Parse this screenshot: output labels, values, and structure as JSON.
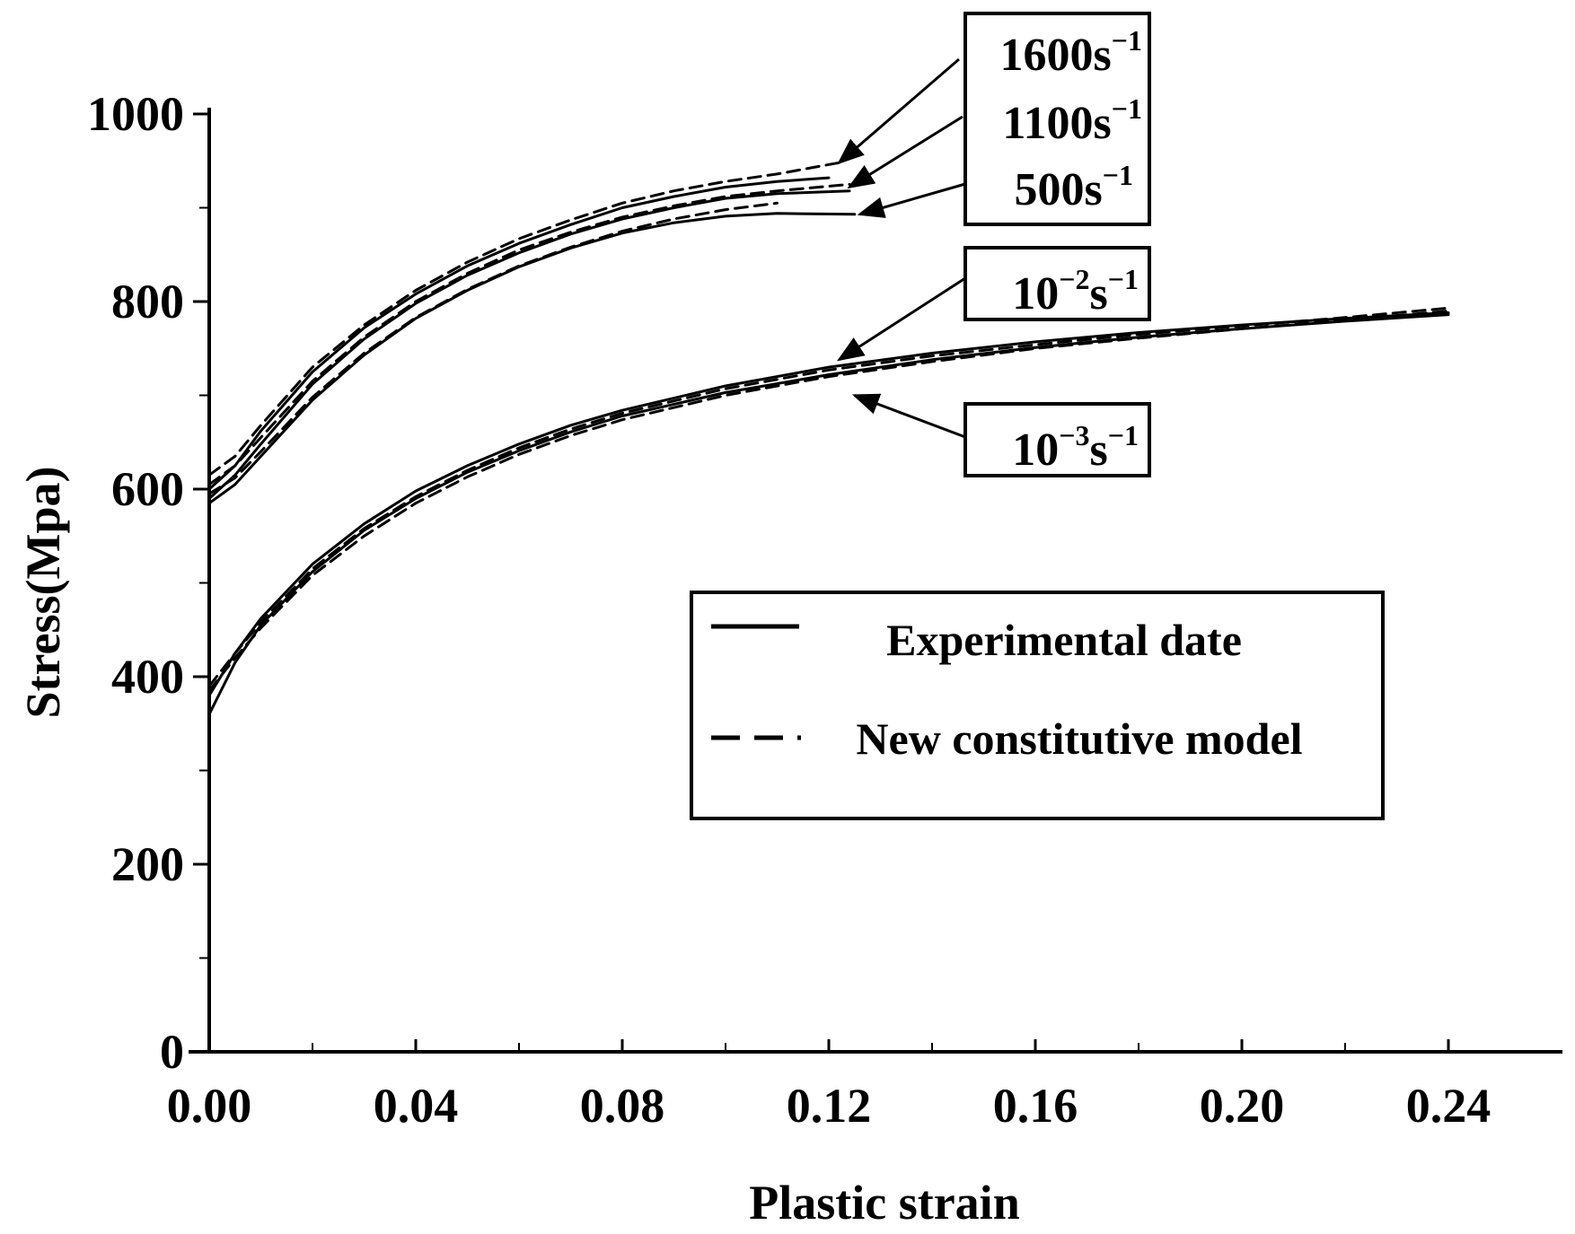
{
  "chart_data": {
    "type": "line",
    "title": "",
    "xlabel": "Plastic strain",
    "ylabel": "Stress(Mpa)",
    "xlim": [
      0,
      0.26
    ],
    "ylim": [
      0,
      1000
    ],
    "xticks": [
      0.0,
      0.04,
      0.08,
      0.12,
      0.16,
      0.2,
      0.24
    ],
    "xtick_labels": [
      "0.00",
      "0.04",
      "0.08",
      "0.12",
      "0.16",
      "0.20",
      "0.24"
    ],
    "yticks": [
      0,
      200,
      400,
      600,
      800,
      1000
    ],
    "ytick_labels": [
      "0",
      "200",
      "400",
      "600",
      "800",
      "1000"
    ],
    "legend": {
      "position": "center-right",
      "entries": [
        {
          "label": "Experimental date",
          "style": "solid"
        },
        {
          "label": "New constitutive model",
          "style": "dashed"
        }
      ]
    },
    "annotations": [
      {
        "rate": "1600",
        "exponent": "",
        "unit": "s",
        "unit_exp": "−1",
        "target": [
          0.122,
          948
        ]
      },
      {
        "rate": "1100",
        "exponent": "",
        "unit": "s",
        "unit_exp": "−1",
        "target": [
          0.124,
          922
        ]
      },
      {
        "rate": "500",
        "exponent": "",
        "unit": "s",
        "unit_exp": "−1",
        "target": [
          0.126,
          893
        ]
      },
      {
        "rate": "10",
        "exponent": "−2",
        "unit": "s",
        "unit_exp": "−1",
        "target": [
          0.122,
          738
        ]
      },
      {
        "rate": "10",
        "exponent": "−3",
        "unit": "s",
        "unit_exp": "−1",
        "target": [
          0.125,
          700
        ]
      }
    ],
    "series": [
      {
        "name": "1600s−1 experimental",
        "style": "solid",
        "x": [
          0,
          0.005,
          0.01,
          0.02,
          0.03,
          0.04,
          0.05,
          0.06,
          0.07,
          0.08,
          0.09,
          0.1,
          0.11,
          0.12
        ],
        "y": [
          600,
          625,
          662,
          725,
          772,
          808,
          838,
          862,
          882,
          900,
          912,
          922,
          928,
          932
        ]
      },
      {
        "name": "1600s−1 model",
        "style": "dashed",
        "x": [
          0,
          0.005,
          0.01,
          0.02,
          0.03,
          0.04,
          0.05,
          0.06,
          0.07,
          0.08,
          0.09,
          0.1,
          0.11,
          0.122
        ],
        "y": [
          615,
          635,
          668,
          730,
          775,
          812,
          842,
          867,
          887,
          905,
          918,
          928,
          936,
          948
        ]
      },
      {
        "name": "1100s−1 experimental",
        "style": "solid",
        "x": [
          0,
          0.005,
          0.01,
          0.02,
          0.03,
          0.04,
          0.05,
          0.06,
          0.07,
          0.08,
          0.09,
          0.1,
          0.11,
          0.124
        ],
        "y": [
          590,
          615,
          648,
          712,
          760,
          798,
          828,
          852,
          872,
          888,
          900,
          910,
          915,
          918
        ]
      },
      {
        "name": "1100s−1 model",
        "style": "dashed",
        "x": [
          0,
          0.005,
          0.01,
          0.02,
          0.03,
          0.04,
          0.05,
          0.06,
          0.07,
          0.08,
          0.09,
          0.1,
          0.11,
          0.124
        ],
        "y": [
          605,
          625,
          655,
          715,
          762,
          800,
          830,
          855,
          874,
          890,
          902,
          912,
          918,
          925
        ]
      },
      {
        "name": "500s−1 experimental",
        "style": "solid",
        "x": [
          0,
          0.005,
          0.01,
          0.02,
          0.03,
          0.04,
          0.05,
          0.06,
          0.07,
          0.08,
          0.09,
          0.1,
          0.11,
          0.125
        ],
        "y": [
          585,
          605,
          635,
          695,
          743,
          782,
          812,
          837,
          857,
          873,
          884,
          891,
          894,
          893
        ]
      },
      {
        "name": "500s−1 model",
        "style": "dashed",
        "x": [
          0,
          0.005,
          0.01,
          0.02,
          0.03,
          0.04,
          0.05,
          0.06,
          0.07,
          0.08,
          0.09,
          0.1,
          0.11
        ],
        "y": [
          595,
          612,
          640,
          698,
          745,
          783,
          813,
          838,
          858,
          875,
          888,
          898,
          905
        ]
      },
      {
        "name": "10−2s−1 experimental",
        "style": "solid",
        "x": [
          0,
          0.005,
          0.01,
          0.02,
          0.03,
          0.04,
          0.05,
          0.06,
          0.07,
          0.08,
          0.1,
          0.12,
          0.14,
          0.16,
          0.18,
          0.2,
          0.22,
          0.24
        ],
        "y": [
          380,
          425,
          462,
          520,
          563,
          598,
          625,
          648,
          668,
          684,
          710,
          730,
          745,
          757,
          767,
          775,
          782,
          788
        ]
      },
      {
        "name": "10−2s−1 model",
        "style": "dashed",
        "x": [
          0,
          0.005,
          0.01,
          0.02,
          0.03,
          0.04,
          0.05,
          0.06,
          0.07,
          0.08,
          0.1,
          0.12,
          0.14,
          0.16,
          0.18,
          0.2,
          0.22,
          0.24
        ],
        "y": [
          390,
          425,
          458,
          515,
          558,
          592,
          620,
          644,
          664,
          681,
          707,
          727,
          742,
          754,
          765,
          774,
          783,
          793
        ]
      },
      {
        "name": "10−3s−1 experimental",
        "style": "solid",
        "x": [
          0,
          0.005,
          0.01,
          0.02,
          0.03,
          0.04,
          0.05,
          0.06,
          0.07,
          0.08,
          0.1,
          0.12,
          0.14,
          0.16,
          0.18,
          0.2,
          0.22,
          0.24
        ],
        "y": [
          360,
          415,
          455,
          512,
          556,
          590,
          618,
          641,
          661,
          678,
          703,
          722,
          738,
          751,
          762,
          771,
          779,
          786
        ]
      },
      {
        "name": "10−3s−1 model",
        "style": "dashed",
        "x": [
          0,
          0.005,
          0.01,
          0.02,
          0.03,
          0.04,
          0.05,
          0.06,
          0.07,
          0.08,
          0.1,
          0.12,
          0.14,
          0.16,
          0.18,
          0.2,
          0.22,
          0.24
        ],
        "y": [
          385,
          420,
          452,
          508,
          550,
          585,
          613,
          637,
          657,
          674,
          700,
          720,
          736,
          750,
          761,
          771,
          780,
          790
        ]
      }
    ]
  }
}
